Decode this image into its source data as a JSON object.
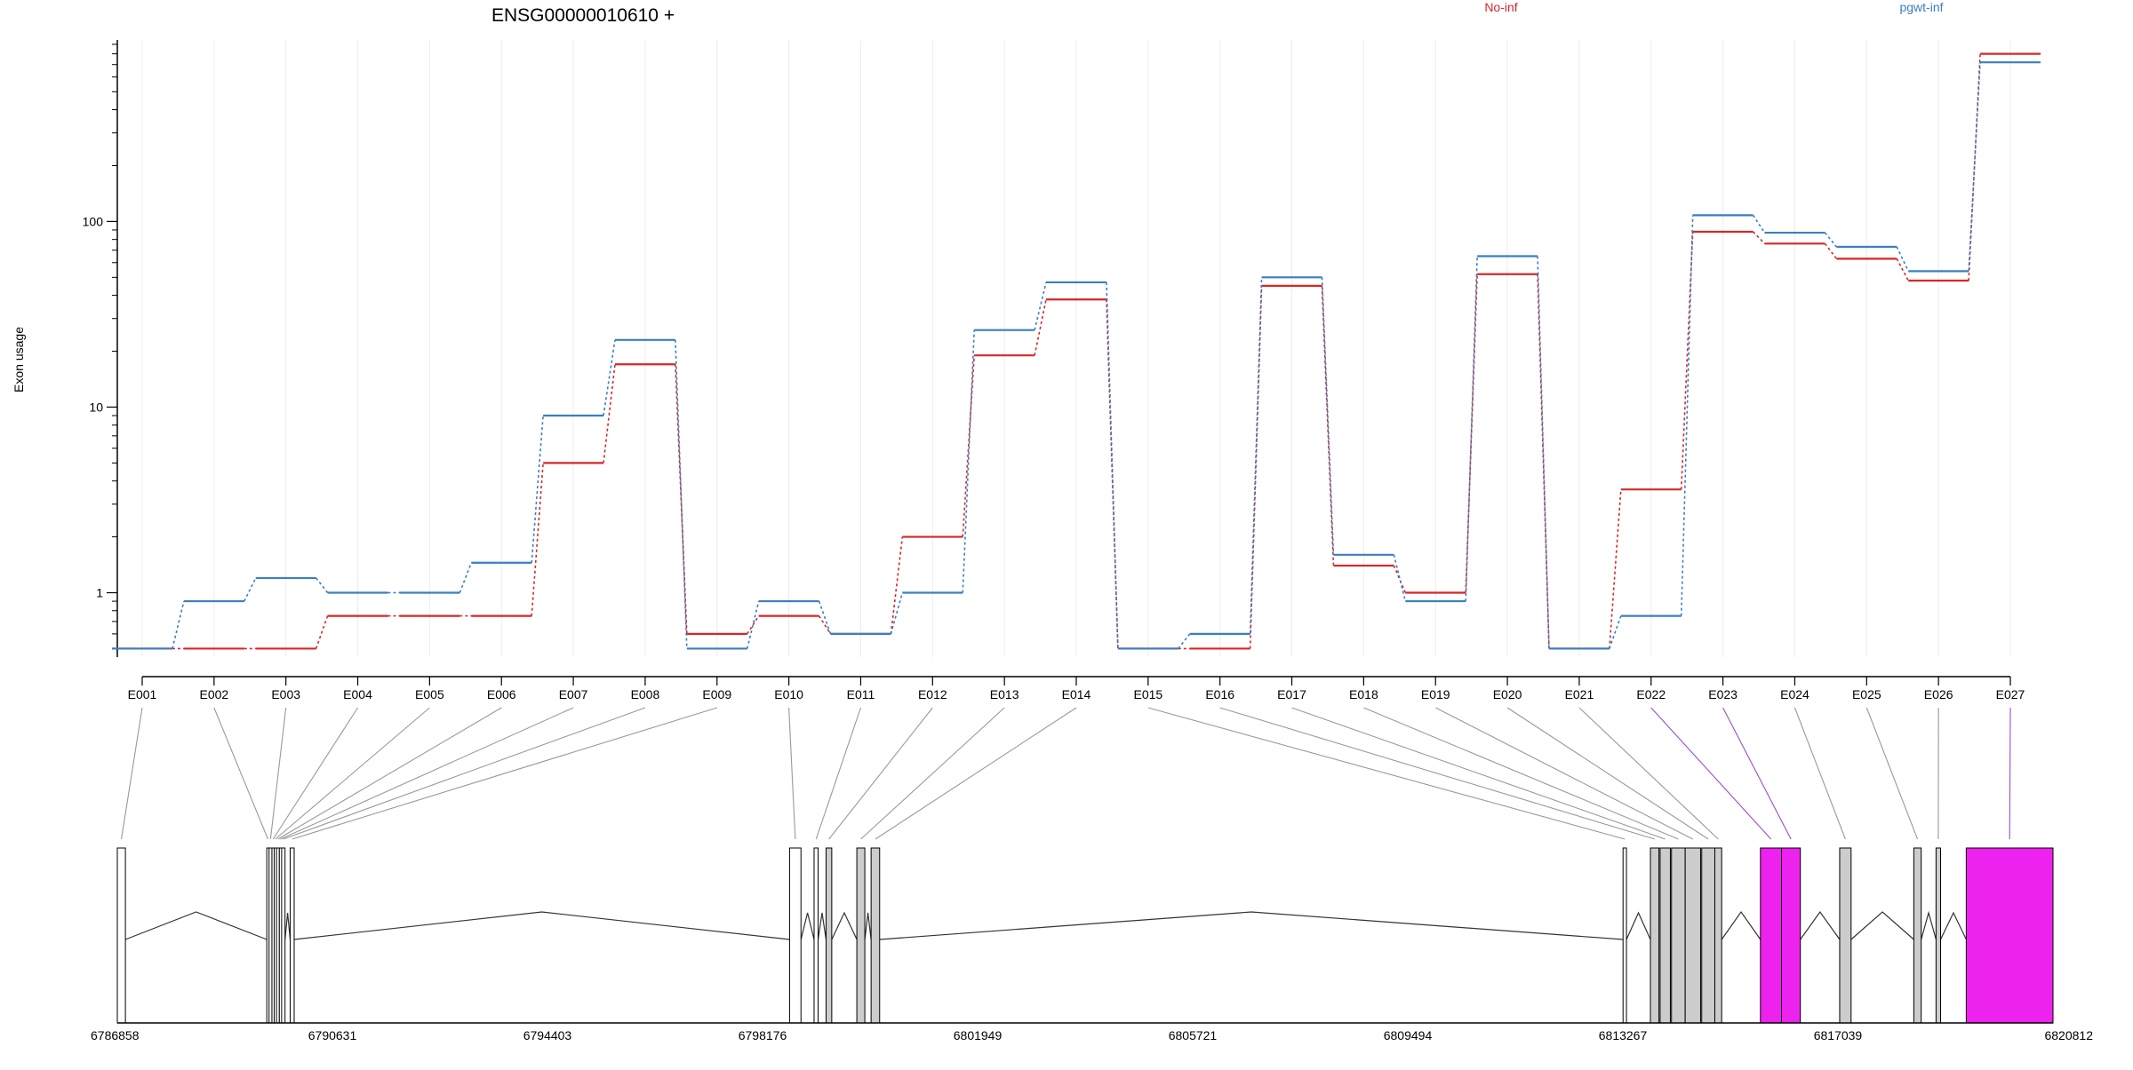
{
  "chart_data": {
    "type": "line",
    "title": "ENSG00000010610 +",
    "ylabel": "Exon usage",
    "yscale": "log",
    "ylim": [
      0.45,
      950
    ],
    "yticks": [
      1,
      10,
      100
    ],
    "ytick_labels": [
      "1",
      "10",
      "100"
    ],
    "categories": [
      "E001",
      "E002",
      "E003",
      "E004",
      "E005",
      "E006",
      "E007",
      "E008",
      "E009",
      "E010",
      "E011",
      "E012",
      "E013",
      "E014",
      "E015",
      "E016",
      "E017",
      "E018",
      "E019",
      "E020",
      "E021",
      "E022",
      "E023",
      "E024",
      "E025",
      "E026",
      "E027"
    ],
    "legend_position": "top",
    "series": [
      {
        "name": "No-inf",
        "color": "#d62728",
        "values": [
          0.5,
          0.5,
          0.5,
          0.75,
          0.75,
          0.75,
          5,
          17,
          0.6,
          0.75,
          0.6,
          2,
          19,
          38,
          0.5,
          0.5,
          45,
          1.4,
          1.0,
          52,
          0.5,
          3.6,
          88,
          76,
          63,
          48,
          800
        ]
      },
      {
        "name": "pgwt-inf",
        "color": "#3a7fc1",
        "values": [
          0.5,
          0.9,
          1.2,
          1.0,
          1.0,
          1.45,
          9,
          23,
          0.5,
          0.9,
          0.6,
          1.0,
          26,
          47,
          0.5,
          0.6,
          50,
          1.6,
          0.9,
          65,
          0.5,
          0.75,
          108,
          87,
          73,
          54,
          720
        ]
      }
    ],
    "gene_model": {
      "coord_range": [
        6786858,
        6820812
      ],
      "coord_labels": [
        "6786858",
        "6790631",
        "6794403",
        "6798176",
        "6801949",
        "6805721",
        "6809494",
        "6813267",
        "6817039",
        "6820812"
      ],
      "exons": [
        {
          "id": "E001",
          "start": 6786858,
          "end": 6787000,
          "fill": "#ffffff"
        },
        {
          "id": "E002",
          "start": 6789480,
          "end": 6789520,
          "fill": "#ffffff"
        },
        {
          "id": "E003",
          "start": 6789520,
          "end": 6789570,
          "fill": "#ffffff"
        },
        {
          "id": "E004",
          "start": 6789570,
          "end": 6789610,
          "fill": "#ffffff"
        },
        {
          "id": "E005",
          "start": 6789610,
          "end": 6789650,
          "fill": "#ffffff"
        },
        {
          "id": "E006",
          "start": 6789650,
          "end": 6789700,
          "fill": "#ffffff"
        },
        {
          "id": "E007",
          "start": 6789700,
          "end": 6789740,
          "fill": "#ffffff"
        },
        {
          "id": "E008",
          "start": 6789740,
          "end": 6789800,
          "fill": "#ffffff"
        },
        {
          "id": "E009",
          "start": 6789890,
          "end": 6789960,
          "fill": "#ffffff"
        },
        {
          "id": "E010",
          "start": 6798650,
          "end": 6798850,
          "fill": "#ffffff"
        },
        {
          "id": "E011",
          "start": 6799080,
          "end": 6799150,
          "fill": "#ffffff"
        },
        {
          "id": "E012",
          "start": 6799290,
          "end": 6799390,
          "fill": "#cccccc"
        },
        {
          "id": "E013",
          "start": 6799830,
          "end": 6799970,
          "fill": "#cccccc"
        },
        {
          "id": "E014",
          "start": 6800080,
          "end": 6800230,
          "fill": "#cccccc"
        },
        {
          "id": "E015",
          "start": 6813270,
          "end": 6813330,
          "fill": "#ffffff"
        },
        {
          "id": "E016",
          "start": 6813750,
          "end": 6813900,
          "fill": "#cccccc"
        },
        {
          "id": "E017",
          "start": 6813920,
          "end": 6814100,
          "fill": "#cccccc"
        },
        {
          "id": "E018",
          "start": 6814120,
          "end": 6814360,
          "fill": "#cccccc"
        },
        {
          "id": "E019",
          "start": 6814360,
          "end": 6814630,
          "fill": "#cccccc"
        },
        {
          "id": "E020",
          "start": 6814650,
          "end": 6814880,
          "fill": "#cccccc"
        },
        {
          "id": "E021",
          "start": 6814880,
          "end": 6815000,
          "fill": "#cccccc"
        },
        {
          "id": "E022",
          "start": 6815680,
          "end": 6816050,
          "fill": "#ee22ee"
        },
        {
          "id": "E023",
          "start": 6816050,
          "end": 6816380,
          "fill": "#ee22ee"
        },
        {
          "id": "E024",
          "start": 6817070,
          "end": 6817270,
          "fill": "#cccccc"
        },
        {
          "id": "E025",
          "start": 6818370,
          "end": 6818500,
          "fill": "#cccccc"
        },
        {
          "id": "E026",
          "start": 6818760,
          "end": 6818840,
          "fill": "#cccccc"
        },
        {
          "id": "E027",
          "start": 6819290,
          "end": 6820812,
          "fill": "#ee22ee"
        }
      ]
    }
  }
}
